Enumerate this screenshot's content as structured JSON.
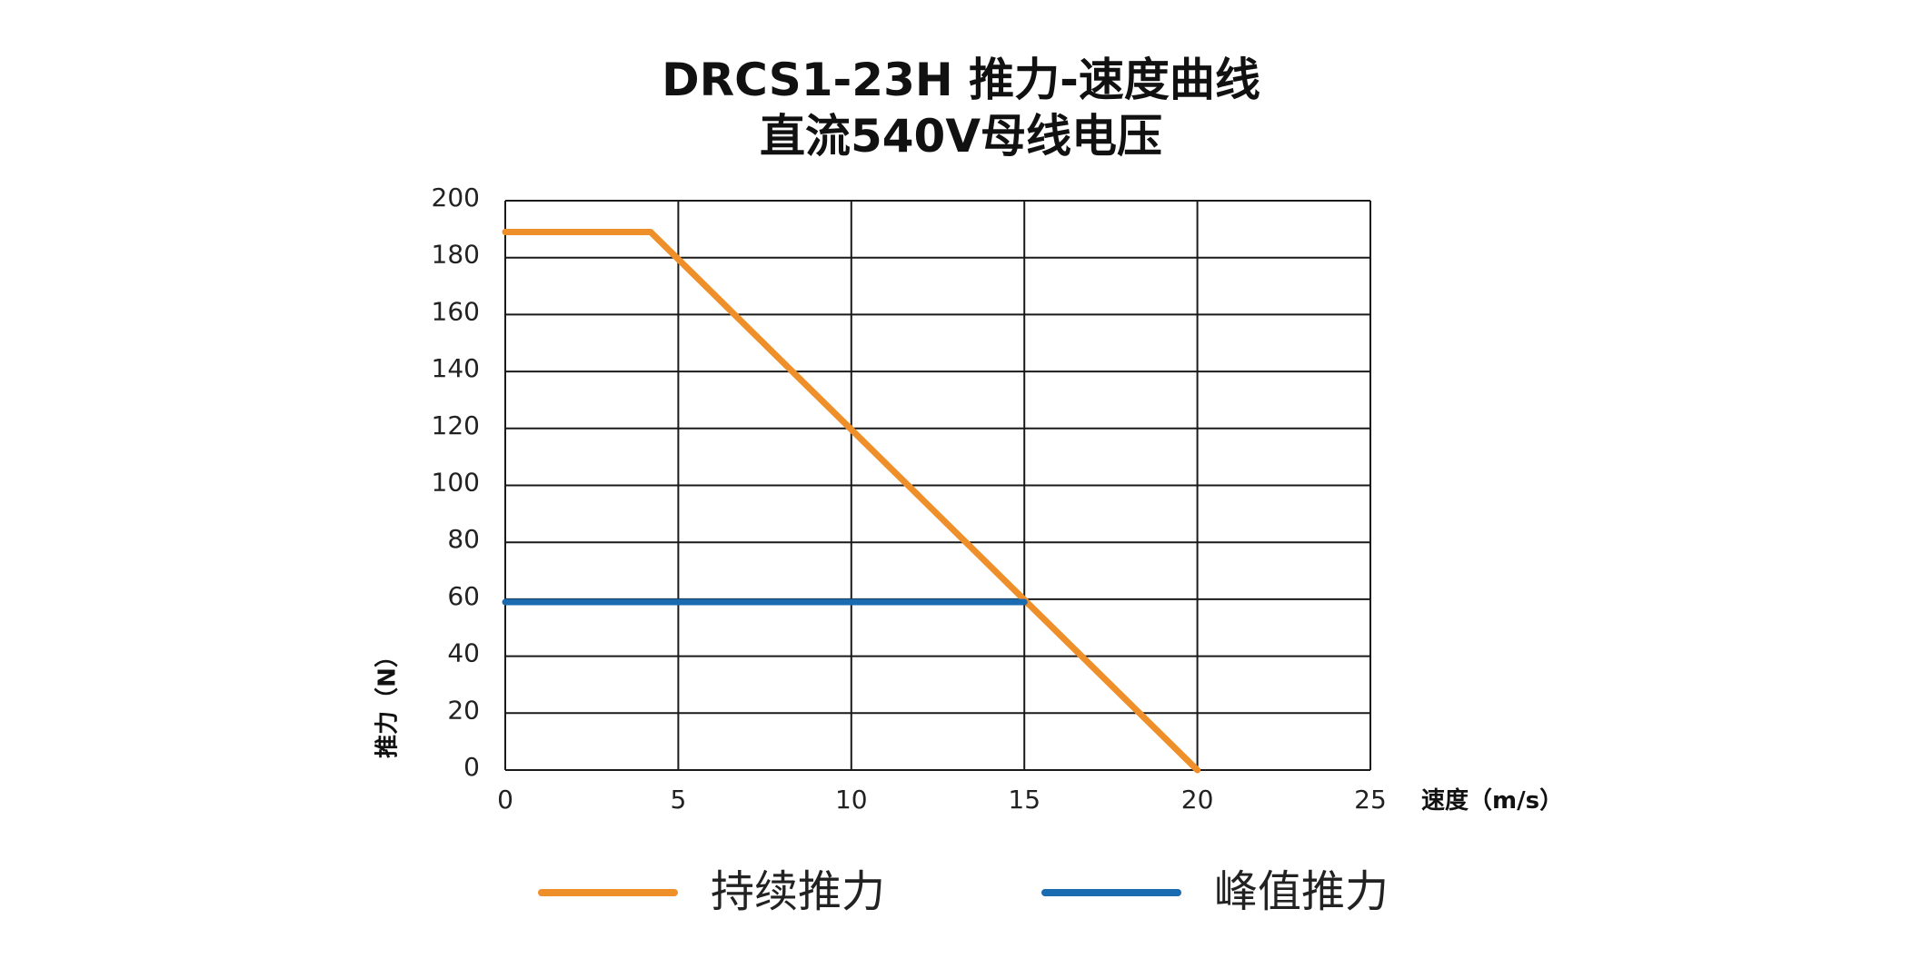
{
  "title_line1": "DRCS1-23H 推力-速度曲线",
  "title_line2": "直流540V母线电压",
  "chart_data": {
    "type": "line",
    "title": "DRCS1-23H 推力-速度曲线 直流540V母线电压",
    "xlabel": "速度（m/s）",
    "ylabel": "推力（N）",
    "xlim": [
      0,
      25
    ],
    "ylim": [
      0,
      200
    ],
    "x_ticks": [
      0,
      5,
      10,
      15,
      20,
      25
    ],
    "y_ticks": [
      0,
      20,
      40,
      60,
      80,
      100,
      120,
      140,
      160,
      180,
      200
    ],
    "grid": true,
    "legend_position": "bottom",
    "series": [
      {
        "name": "持续推力",
        "color": "#EF8F2A",
        "points": [
          [
            0,
            189
          ],
          [
            4.2,
            189
          ],
          [
            20,
            0
          ]
        ]
      },
      {
        "name": "峰值推力",
        "color": "#1B6BB0",
        "points": [
          [
            0,
            59
          ],
          [
            15,
            59
          ]
        ]
      }
    ]
  }
}
